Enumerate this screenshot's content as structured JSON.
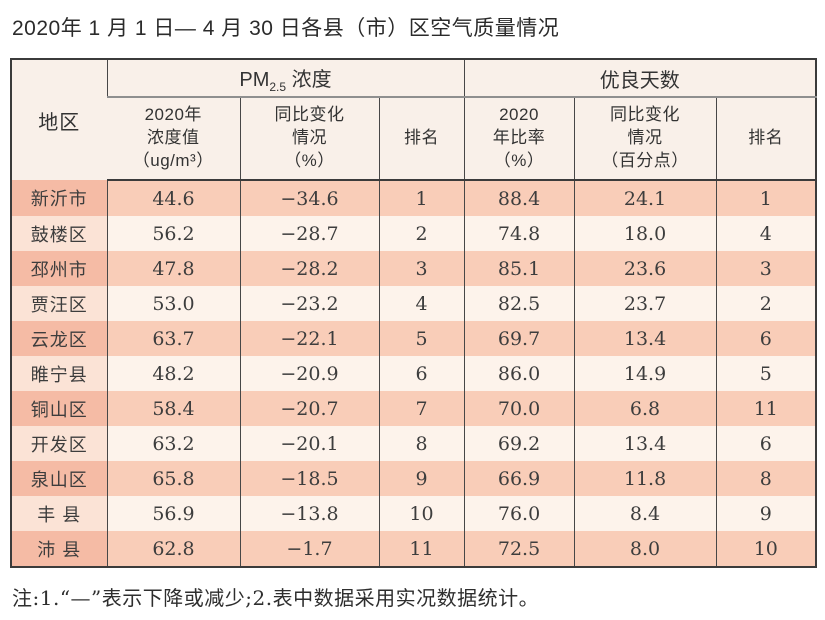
{
  "title": "2020年 1 月 1 日— 4 月 30 日各县（市）区空气质量情况",
  "note": "注:1.“—”表示下降或减少;2.表中数据采用实况数据统计。",
  "colors": {
    "row_odd": "#f9cdb8",
    "row_odd_region": "#f5bba5",
    "row_even": "#fdf3eb",
    "row_even_region": "#fbe3d6",
    "header_bg": "#f9f0e9",
    "border_dark": "#3b3b3b",
    "border_gray": "#8f8f8f"
  },
  "table": {
    "region_header": "地区",
    "pm_group": {
      "prefix": "PM",
      "sub": "2.5",
      "suffix": " 浓度"
    },
    "good_group": "优良天数",
    "sub_headers": [
      "2020年\n浓度值\n（ug/m³）",
      "同比变化\n情况\n（%）",
      "排名",
      "2020\n年比率\n（%）",
      "同比变化\n情况\n（百分点）",
      "排名"
    ],
    "rows": [
      {
        "region": "新沂市",
        "pm": "44.6",
        "pm_change": "−34.6",
        "pm_rank": "1",
        "rate": "88.4",
        "rate_change": "24.1",
        "rate_rank": "1"
      },
      {
        "region": "鼓楼区",
        "pm": "56.2",
        "pm_change": "−28.7",
        "pm_rank": "2",
        "rate": "74.8",
        "rate_change": "18.0",
        "rate_rank": "4"
      },
      {
        "region": "邳州市",
        "pm": "47.8",
        "pm_change": "−28.2",
        "pm_rank": "3",
        "rate": "85.1",
        "rate_change": "23.6",
        "rate_rank": "3"
      },
      {
        "region": "贾汪区",
        "pm": "53.0",
        "pm_change": "−23.2",
        "pm_rank": "4",
        "rate": "82.5",
        "rate_change": "23.7",
        "rate_rank": "2"
      },
      {
        "region": "云龙区",
        "pm": "63.7",
        "pm_change": "−22.1",
        "pm_rank": "5",
        "rate": "69.7",
        "rate_change": "13.4",
        "rate_rank": "6"
      },
      {
        "region": "睢宁县",
        "pm": "48.2",
        "pm_change": "−20.9",
        "pm_rank": "6",
        "rate": "86.0",
        "rate_change": "14.9",
        "rate_rank": "5"
      },
      {
        "region": "铜山区",
        "pm": "58.4",
        "pm_change": "−20.7",
        "pm_rank": "7",
        "rate": "70.0",
        "rate_change": "6.8",
        "rate_rank": "11"
      },
      {
        "region": "开发区",
        "pm": "63.2",
        "pm_change": "−20.1",
        "pm_rank": "8",
        "rate": "69.2",
        "rate_change": "13.4",
        "rate_rank": "6"
      },
      {
        "region": "泉山区",
        "pm": "65.8",
        "pm_change": "−18.5",
        "pm_rank": "9",
        "rate": "66.9",
        "rate_change": "11.8",
        "rate_rank": "8"
      },
      {
        "region": "丰 县",
        "pm": "56.9",
        "pm_change": "−13.8",
        "pm_rank": "10",
        "rate": "76.0",
        "rate_change": "8.4",
        "rate_rank": "9"
      },
      {
        "region": "沛 县",
        "pm": "62.8",
        "pm_change": "−1.7",
        "pm_rank": "11",
        "rate": "72.5",
        "rate_change": "8.0",
        "rate_rank": "10"
      }
    ]
  }
}
